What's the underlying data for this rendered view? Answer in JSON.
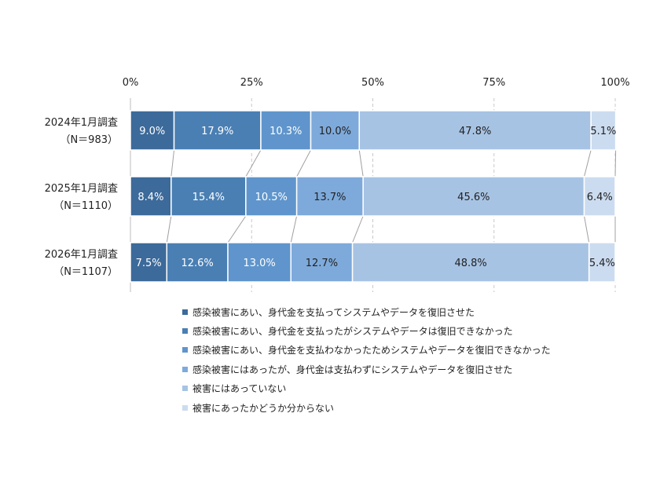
{
  "chart_data": {
    "type": "bar",
    "orientation": "horizontal",
    "stacked": true,
    "title": "",
    "xlabel": "",
    "ylabel": "",
    "xlim": [
      0,
      100
    ],
    "tick_labels": [
      "0%",
      "25%",
      "50%",
      "75%",
      "100%"
    ],
    "tick_values": [
      0,
      25,
      50,
      75,
      100
    ],
    "grid": "dashed vertical",
    "legend_position": "bottom",
    "categories": [
      {
        "line1": "2024年1月調査",
        "line2": "（N＝983）"
      },
      {
        "line1": "2025年1月調査",
        "line2": "（N＝1110）"
      },
      {
        "line1": "2026年1月調査",
        "line2": "（N＝1107）"
      }
    ],
    "series": [
      {
        "name": "感染被害にあい、身代金を支払ってシステムやデータを復旧させた",
        "color": "#3c6a9a",
        "label_color": "#ffffff",
        "values": [
          9.0,
          8.4,
          7.5
        ],
        "labels": [
          "9.0%",
          "8.4%",
          "7.5%"
        ]
      },
      {
        "name": "感染被害にあい、身代金を支払ったがシステムやデータは復旧できなかった",
        "color": "#4a7fb3",
        "label_color": "#ffffff",
        "values": [
          17.9,
          15.4,
          12.6
        ],
        "labels": [
          "17.9%",
          "15.4%",
          "12.6%"
        ]
      },
      {
        "name": "感染被害にあい、身代金を支払わなかったためシステムやデータを復旧できなかった",
        "color": "#5f95cc",
        "label_color": "#ffffff",
        "values": [
          10.3,
          10.5,
          13.0
        ],
        "labels": [
          "10.3%",
          "10.5%",
          "13.0%"
        ]
      },
      {
        "name": "感染被害にはあったが、身代金は支払わずにシステムやデータを復旧させた",
        "color": "#7eaadb",
        "label_color": "#222222",
        "values": [
          10.0,
          13.7,
          12.7
        ],
        "labels": [
          "10.0%",
          "13.7%",
          "12.7%"
        ]
      },
      {
        "name": "被害にはあっていない",
        "color": "#a7c3e4",
        "label_color": "#222222",
        "values": [
          47.8,
          45.6,
          48.8
        ],
        "labels": [
          "47.8%",
          "45.6%",
          "48.8%"
        ]
      },
      {
        "name": "被害にあったかどうか分からない",
        "color": "#ccdcf0",
        "label_color": "#222222",
        "values": [
          5.1,
          6.4,
          5.4
        ],
        "labels": [
          "5.1%",
          "6.4%",
          "5.4%"
        ]
      }
    ]
  }
}
